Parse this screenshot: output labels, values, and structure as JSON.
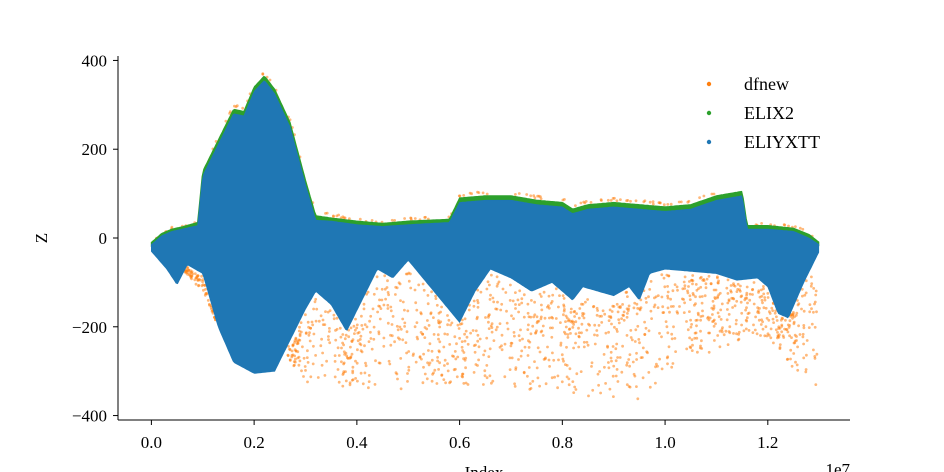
{
  "chart_data": {
    "type": "scatter",
    "title": "",
    "xlabel": "Index",
    "ylabel": "Z",
    "x_offset_label": "1e7",
    "xlim": [
      -0.065,
      1.36
    ],
    "ylim": [
      -410,
      410
    ],
    "xticks": [
      0.0,
      0.2,
      0.4,
      0.6,
      0.8,
      1.0,
      1.2
    ],
    "yticks": [
      -400,
      -200,
      0,
      200,
      400
    ],
    "xtick_labels": [
      "0.0",
      "0.2",
      "0.4",
      "0.6",
      "0.8",
      "1.0",
      "1.2"
    ],
    "ytick_labels": [
      "−400",
      "−200",
      "0",
      "200",
      "400"
    ],
    "grid": false,
    "legend_position": "top-right",
    "series": [
      {
        "name": "dfnew",
        "color": "#ff7f0e",
        "upper": [
          [
            0.0,
            -5
          ],
          [
            0.02,
            15
          ],
          [
            0.04,
            25
          ],
          [
            0.06,
            30
          ],
          [
            0.09,
            40
          ],
          [
            0.1,
            160
          ],
          [
            0.13,
            230
          ],
          [
            0.16,
            300
          ],
          [
            0.18,
            295
          ],
          [
            0.2,
            350
          ],
          [
            0.22,
            375
          ],
          [
            0.24,
            345
          ],
          [
            0.27,
            270
          ],
          [
            0.3,
            140
          ],
          [
            0.32,
            60
          ],
          [
            0.35,
            55
          ],
          [
            0.4,
            45
          ],
          [
            0.45,
            40
          ],
          [
            0.5,
            45
          ],
          [
            0.58,
            50
          ],
          [
            0.6,
            100
          ],
          [
            0.65,
            105
          ],
          [
            0.7,
            105
          ],
          [
            0.75,
            95
          ],
          [
            0.8,
            90
          ],
          [
            0.82,
            75
          ],
          [
            0.85,
            85
          ],
          [
            0.9,
            90
          ],
          [
            0.95,
            85
          ],
          [
            1.0,
            80
          ],
          [
            1.05,
            85
          ],
          [
            1.1,
            105
          ],
          [
            1.15,
            115
          ],
          [
            1.16,
            35
          ],
          [
            1.2,
            35
          ],
          [
            1.25,
            30
          ],
          [
            1.28,
            15
          ],
          [
            1.3,
            -5
          ]
        ],
        "lower": [
          [
            0.0,
            -50
          ],
          [
            0.05,
            -60
          ],
          [
            0.1,
            -120
          ],
          [
            0.15,
            -250
          ],
          [
            0.2,
            -295
          ],
          [
            0.25,
            -240
          ],
          [
            0.3,
            -330
          ],
          [
            0.4,
            -340
          ],
          [
            0.5,
            -340
          ],
          [
            0.6,
            -330
          ],
          [
            0.7,
            -335
          ],
          [
            0.75,
            -345
          ],
          [
            0.8,
            -355
          ],
          [
            0.9,
            -360
          ],
          [
            0.97,
            -365
          ],
          [
            1.0,
            -300
          ],
          [
            1.1,
            -260
          ],
          [
            1.2,
            -220
          ],
          [
            1.25,
            -300
          ],
          [
            1.3,
            -360
          ]
        ],
        "notes": "sparse outlier clusters between -150 and -370"
      },
      {
        "name": "ELIX2",
        "color": "#2ca02c",
        "upper": [
          [
            0.0,
            -10
          ],
          [
            0.02,
            10
          ],
          [
            0.04,
            20
          ],
          [
            0.06,
            25
          ],
          [
            0.09,
            35
          ],
          [
            0.1,
            150
          ],
          [
            0.13,
            220
          ],
          [
            0.16,
            290
          ],
          [
            0.18,
            285
          ],
          [
            0.2,
            340
          ],
          [
            0.22,
            365
          ],
          [
            0.24,
            335
          ],
          [
            0.27,
            260
          ],
          [
            0.3,
            130
          ],
          [
            0.32,
            50
          ],
          [
            0.35,
            45
          ],
          [
            0.4,
            38
          ],
          [
            0.45,
            33
          ],
          [
            0.5,
            38
          ],
          [
            0.58,
            42
          ],
          [
            0.6,
            90
          ],
          [
            0.65,
            95
          ],
          [
            0.7,
            95
          ],
          [
            0.75,
            85
          ],
          [
            0.8,
            80
          ],
          [
            0.82,
            65
          ],
          [
            0.85,
            75
          ],
          [
            0.9,
            80
          ],
          [
            0.95,
            75
          ],
          [
            1.0,
            70
          ],
          [
            1.05,
            75
          ],
          [
            1.1,
            95
          ],
          [
            1.15,
            105
          ],
          [
            1.16,
            28
          ],
          [
            1.2,
            28
          ],
          [
            1.25,
            22
          ],
          [
            1.28,
            8
          ],
          [
            1.3,
            -10
          ]
        ]
      },
      {
        "name": "ELIYXTT",
        "color": "#1f77b4",
        "upper": [
          [
            0.0,
            -15
          ],
          [
            0.02,
            5
          ],
          [
            0.04,
            15
          ],
          [
            0.06,
            20
          ],
          [
            0.09,
            28
          ],
          [
            0.1,
            140
          ],
          [
            0.13,
            210
          ],
          [
            0.16,
            280
          ],
          [
            0.18,
            275
          ],
          [
            0.2,
            330
          ],
          [
            0.22,
            355
          ],
          [
            0.24,
            325
          ],
          [
            0.27,
            250
          ],
          [
            0.3,
            120
          ],
          [
            0.32,
            40
          ],
          [
            0.35,
            38
          ],
          [
            0.4,
            30
          ],
          [
            0.45,
            26
          ],
          [
            0.5,
            30
          ],
          [
            0.58,
            35
          ],
          [
            0.6,
            80
          ],
          [
            0.65,
            85
          ],
          [
            0.7,
            85
          ],
          [
            0.75,
            75
          ],
          [
            0.8,
            70
          ],
          [
            0.82,
            55
          ],
          [
            0.85,
            65
          ],
          [
            0.9,
            70
          ],
          [
            0.95,
            65
          ],
          [
            1.0,
            60
          ],
          [
            1.05,
            65
          ],
          [
            1.1,
            85
          ],
          [
            1.15,
            95
          ],
          [
            1.16,
            20
          ],
          [
            1.2,
            20
          ],
          [
            1.25,
            15
          ],
          [
            1.28,
            0
          ],
          [
            1.3,
            -15
          ]
        ],
        "lower": [
          [
            0.0,
            -30
          ],
          [
            0.03,
            -70
          ],
          [
            0.05,
            -105
          ],
          [
            0.07,
            -60
          ],
          [
            0.1,
            -80
          ],
          [
            0.13,
            -200
          ],
          [
            0.16,
            -280
          ],
          [
            0.2,
            -305
          ],
          [
            0.24,
            -300
          ],
          [
            0.27,
            -230
          ],
          [
            0.3,
            -160
          ],
          [
            0.32,
            -120
          ],
          [
            0.35,
            -150
          ],
          [
            0.38,
            -210
          ],
          [
            0.41,
            -140
          ],
          [
            0.44,
            -70
          ],
          [
            0.47,
            -90
          ],
          [
            0.5,
            -50
          ],
          [
            0.55,
            -120
          ],
          [
            0.6,
            -190
          ],
          [
            0.63,
            -120
          ],
          [
            0.66,
            -70
          ],
          [
            0.7,
            -90
          ],
          [
            0.74,
            -120
          ],
          [
            0.78,
            -100
          ],
          [
            0.82,
            -140
          ],
          [
            0.84,
            -110
          ],
          [
            0.87,
            -120
          ],
          [
            0.9,
            -130
          ],
          [
            0.93,
            -110
          ],
          [
            0.95,
            -140
          ],
          [
            0.97,
            -80
          ],
          [
            1.0,
            -70
          ],
          [
            1.05,
            -75
          ],
          [
            1.1,
            -80
          ],
          [
            1.14,
            -95
          ],
          [
            1.18,
            -90
          ],
          [
            1.2,
            -110
          ],
          [
            1.22,
            -170
          ],
          [
            1.24,
            -180
          ],
          [
            1.27,
            -100
          ],
          [
            1.3,
            -30
          ]
        ]
      }
    ]
  }
}
